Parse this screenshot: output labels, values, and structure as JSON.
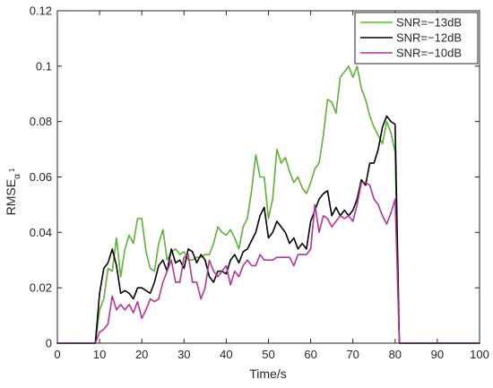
{
  "chart_data": {
    "type": "line",
    "title": "",
    "xlabel": "Time/s",
    "ylabel": "RMSE",
    "ylabel_subscript": "α",
    "ylabel_subscript2": "1",
    "xlim": [
      0,
      100
    ],
    "ylim": [
      0,
      0.12
    ],
    "xticks": [
      0,
      10,
      20,
      30,
      40,
      50,
      60,
      70,
      80,
      90,
      100
    ],
    "yticks": [
      0,
      0.02,
      0.04,
      0.06,
      0.08,
      0.1,
      0.12
    ],
    "ytick_labels": [
      "0",
      "0.02",
      "0.04",
      "0.06",
      "0.08",
      "0.1",
      "0.12"
    ],
    "grid": false,
    "box": true,
    "legend_position": "top-right",
    "series": [
      {
        "name": "SNR=−13dB",
        "color": "#5db135",
        "x": [
          0,
          1,
          2,
          3,
          4,
          5,
          6,
          7,
          8,
          9,
          10,
          11,
          12,
          13,
          14,
          15,
          16,
          17,
          18,
          19,
          20,
          21,
          22,
          23,
          24,
          25,
          26,
          27,
          28,
          29,
          30,
          31,
          32,
          33,
          34,
          35,
          36,
          37,
          38,
          39,
          40,
          41,
          42,
          43,
          44,
          45,
          46,
          47,
          48,
          49,
          50,
          51,
          52,
          53,
          54,
          55,
          56,
          57,
          58,
          59,
          60,
          61,
          62,
          63,
          64,
          65,
          66,
          67,
          68,
          69,
          70,
          71,
          72,
          73,
          74,
          75,
          76,
          77,
          78,
          79,
          80,
          81,
          82,
          83,
          84,
          85,
          86,
          87,
          88,
          89,
          90,
          91,
          92,
          93,
          94,
          95,
          96,
          97,
          98,
          99,
          100
        ],
        "y": [
          0,
          0,
          0,
          0,
          0,
          0,
          0,
          0,
          0,
          0,
          0.012,
          0.016,
          0.027,
          0.026,
          0.038,
          0.024,
          0.034,
          0.039,
          0.036,
          0.045,
          0.045,
          0.033,
          0.027,
          0.026,
          0.036,
          0.041,
          0.03,
          0.033,
          0.034,
          0.032,
          0.033,
          0.03,
          0.03,
          0.031,
          0.031,
          0.032,
          0.032,
          0.036,
          0.042,
          0.04,
          0.039,
          0.041,
          0.038,
          0.034,
          0.042,
          0.045,
          0.055,
          0.068,
          0.06,
          0.06,
          0.045,
          0.052,
          0.07,
          0.065,
          0.067,
          0.062,
          0.058,
          0.06,
          0.056,
          0.054,
          0.058,
          0.063,
          0.065,
          0.075,
          0.088,
          0.087,
          0.083,
          0.096,
          0.098,
          0.1,
          0.096,
          0.1,
          0.092,
          0.088,
          0.082,
          0.078,
          0.075,
          0.072,
          0.08,
          0.076,
          0.069,
          0,
          0,
          0,
          0,
          0,
          0,
          0,
          0,
          0,
          0,
          0,
          0,
          0,
          0,
          0,
          0,
          0,
          0,
          0,
          0
        ]
      },
      {
        "name": "SNR=−12dB",
        "color": "#000000",
        "x": [
          0,
          1,
          2,
          3,
          4,
          5,
          6,
          7,
          8,
          9,
          10,
          11,
          12,
          13,
          14,
          15,
          16,
          17,
          18,
          19,
          20,
          21,
          22,
          23,
          24,
          25,
          26,
          27,
          28,
          29,
          30,
          31,
          32,
          33,
          34,
          35,
          36,
          37,
          38,
          39,
          40,
          41,
          42,
          43,
          44,
          45,
          46,
          47,
          48,
          49,
          50,
          51,
          52,
          53,
          54,
          55,
          56,
          57,
          58,
          59,
          60,
          61,
          62,
          63,
          64,
          65,
          66,
          67,
          68,
          69,
          70,
          71,
          72,
          73,
          74,
          75,
          76,
          77,
          78,
          79,
          80,
          81,
          82,
          83,
          84,
          85,
          86,
          87,
          88,
          89,
          90,
          91,
          92,
          93,
          94,
          95,
          96,
          97,
          98,
          99,
          100
        ],
        "y": [
          0,
          0,
          0,
          0,
          0,
          0,
          0,
          0,
          0,
          0,
          0.018,
          0.027,
          0.029,
          0.034,
          0.028,
          0.018,
          0.019,
          0.018,
          0.016,
          0.02,
          0.02,
          0.019,
          0.018,
          0.022,
          0.028,
          0.03,
          0.026,
          0.034,
          0.029,
          0.03,
          0.027,
          0.034,
          0.033,
          0.029,
          0.032,
          0.03,
          0.024,
          0.022,
          0.026,
          0.026,
          0.025,
          0.03,
          0.032,
          0.029,
          0.033,
          0.034,
          0.037,
          0.04,
          0.046,
          0.049,
          0.038,
          0.04,
          0.044,
          0.042,
          0.04,
          0.036,
          0.038,
          0.034,
          0.036,
          0.034,
          0.044,
          0.048,
          0.052,
          0.054,
          0.055,
          0.046,
          0.049,
          0.046,
          0.048,
          0.046,
          0.048,
          0.052,
          0.059,
          0.057,
          0.065,
          0.065,
          0.07,
          0.078,
          0.082,
          0.08,
          0.079,
          0,
          0,
          0,
          0,
          0,
          0,
          0,
          0,
          0,
          0,
          0,
          0,
          0,
          0,
          0,
          0,
          0,
          0,
          0,
          0
        ]
      },
      {
        "name": "SNR=−10dB",
        "color": "#b4339b",
        "x": [
          0,
          1,
          2,
          3,
          4,
          5,
          6,
          7,
          8,
          9,
          10,
          11,
          12,
          13,
          14,
          15,
          16,
          17,
          18,
          19,
          20,
          21,
          22,
          23,
          24,
          25,
          26,
          27,
          28,
          29,
          30,
          31,
          32,
          33,
          34,
          35,
          36,
          37,
          38,
          39,
          40,
          41,
          42,
          43,
          44,
          45,
          46,
          47,
          48,
          49,
          50,
          51,
          52,
          53,
          54,
          55,
          56,
          57,
          58,
          59,
          60,
          61,
          62,
          63,
          64,
          65,
          66,
          67,
          68,
          69,
          70,
          71,
          72,
          73,
          74,
          75,
          76,
          77,
          78,
          79,
          80,
          81,
          82,
          83,
          84,
          85,
          86,
          87,
          88,
          89,
          90,
          91,
          92,
          93,
          94,
          95,
          96,
          97,
          98,
          99,
          100
        ],
        "y": [
          0,
          0,
          0,
          0,
          0,
          0,
          0,
          0,
          0,
          0,
          0.004,
          0.005,
          0.007,
          0.017,
          0.012,
          0.014,
          0.012,
          0.014,
          0.011,
          0.015,
          0.009,
          0.012,
          0.016,
          0.015,
          0.016,
          0.022,
          0.026,
          0.03,
          0.022,
          0.022,
          0.031,
          0.032,
          0.022,
          0.022,
          0.016,
          0.02,
          0.03,
          0.026,
          0.024,
          0.026,
          0.028,
          0.021,
          0.026,
          0.024,
          0.028,
          0.03,
          0.028,
          0.028,
          0.032,
          0.03,
          0.03,
          0.03,
          0.031,
          0.031,
          0.031,
          0.031,
          0.028,
          0.032,
          0.032,
          0.032,
          0.034,
          0.05,
          0.04,
          0.046,
          0.045,
          0.042,
          0.044,
          0.046,
          0.045,
          0.046,
          0.044,
          0.05,
          0.058,
          0.058,
          0.057,
          0.052,
          0.05,
          0.046,
          0.043,
          0.047,
          0.052,
          0,
          0,
          0,
          0,
          0,
          0,
          0,
          0,
          0,
          0,
          0,
          0,
          0,
          0,
          0,
          0,
          0,
          0,
          0,
          0
        ]
      }
    ]
  }
}
